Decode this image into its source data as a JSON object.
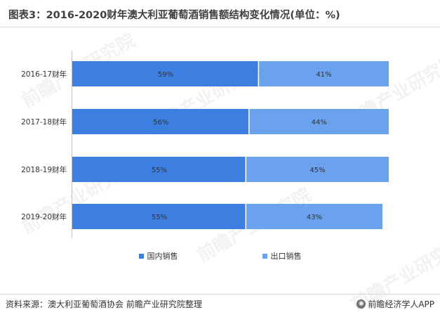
{
  "title": "图表3：2016-2020财年澳大利亚葡萄酒销售额结构变化情况(单位：%)",
  "chart_data": {
    "type": "bar",
    "orientation": "horizontal",
    "stacked": true,
    "categories": [
      "2016-17财年",
      "2017-18财年",
      "2018-19财年",
      "2019-20财年"
    ],
    "series": [
      {
        "name": "国内销售",
        "values": [
          59,
          56,
          55,
          55
        ],
        "labels": [
          "59%",
          "56%",
          "55%",
          "55%"
        ],
        "color": "#3d7fe0"
      },
      {
        "name": "出口销售",
        "values": [
          41,
          44,
          45,
          43
        ],
        "labels": [
          "41%",
          "44%",
          "45%",
          "43%"
        ],
        "color": "#6aa2ed"
      }
    ],
    "xlim": [
      0,
      100
    ],
    "grid": false,
    "legend": "bottom"
  },
  "legend": {
    "items": [
      {
        "label": "国内销售",
        "color": "#3d7fe0"
      },
      {
        "label": "出口销售",
        "color": "#6aa2ed"
      }
    ]
  },
  "footer": {
    "source": "资料来源：澳大利亚葡萄酒协会 前瞻产业研究院整理",
    "credit": "前瞻经济学人APP",
    "credit_icon": "qianzhan-logo-icon"
  },
  "watermark": {
    "text": "前瞻产业研究院"
  }
}
